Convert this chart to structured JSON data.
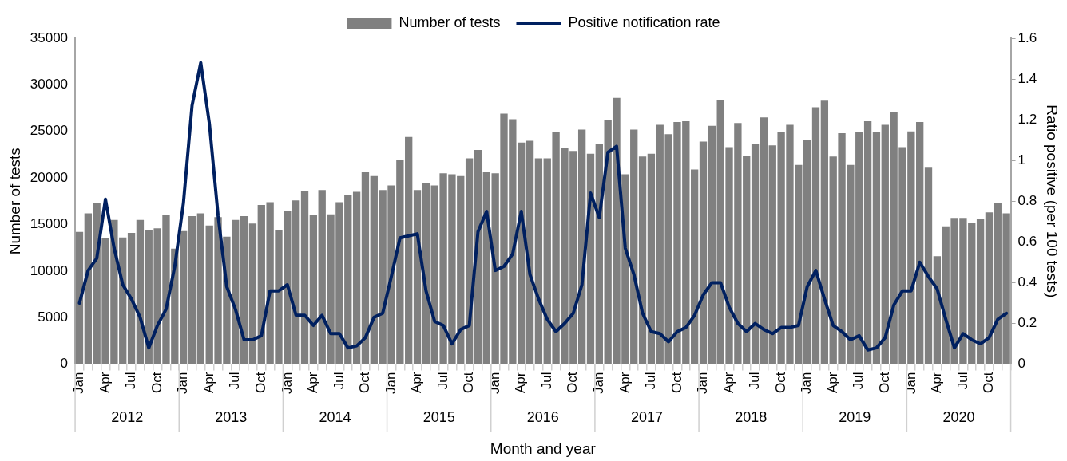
{
  "chart_data": {
    "type": "bar",
    "xlabel": "Month and year",
    "ylabel": "Number of tests",
    "y2label": "Ratio positive (per 100 tests)",
    "categories": [
      "Jan",
      null,
      null,
      "Apr",
      null,
      null,
      "Jul",
      null,
      null,
      "Oct",
      null,
      null,
      "Jan",
      null,
      null,
      "Apr",
      null,
      null,
      "Jul",
      null,
      null,
      "Oct",
      null,
      null,
      "Jan",
      null,
      null,
      "Apr",
      null,
      null,
      "Jul",
      null,
      null,
      "Oct",
      null,
      null,
      "Jan",
      null,
      null,
      "Apr",
      null,
      null,
      "Jul",
      null,
      null,
      "Oct",
      null,
      null,
      "Jan",
      null,
      null,
      "Apr",
      null,
      null,
      "Jul",
      null,
      null,
      "Oct",
      null,
      null,
      "Jan",
      null,
      null,
      "Apr",
      null,
      null,
      "Jul",
      null,
      null,
      "Oct",
      null,
      null,
      "Jan",
      null,
      null,
      "Apr",
      null,
      null,
      "Jul",
      null,
      null,
      "Oct",
      null,
      null,
      "Jan",
      null,
      null,
      "Apr",
      null,
      null,
      "Jul",
      null,
      null,
      "Oct",
      null,
      null,
      "Jan",
      null,
      null,
      "Apr",
      null,
      null,
      "Jul",
      null,
      null,
      "Oct",
      null,
      null
    ],
    "annotations": [
      "2012",
      "2013",
      "2014",
      "2015",
      "2016",
      "2017",
      "2018",
      "2019",
      "2020"
    ],
    "series": [
      {
        "name": "Number of tests",
        "color": "#808080",
        "values": [
          14200,
          16200,
          17300,
          13500,
          15500,
          13600,
          14100,
          15500,
          14400,
          14600,
          16000,
          12400,
          14300,
          15900,
          16200,
          14900,
          15800,
          13700,
          15500,
          15900,
          15100,
          17100,
          17400,
          14400,
          16500,
          17600,
          18600,
          16000,
          18700,
          16100,
          17400,
          18200,
          18500,
          20600,
          20200,
          18700,
          19200,
          21900,
          24400,
          18700,
          19500,
          19200,
          20500,
          20400,
          20200,
          22100,
          23000,
          20600,
          20500,
          26900,
          26300,
          23800,
          24000,
          22100,
          22100,
          24900,
          23200,
          22900,
          25200,
          22600,
          23600,
          26200,
          28600,
          20400,
          25200,
          22300,
          22600,
          25700,
          24700,
          26000,
          26100,
          20900,
          23900,
          25600,
          28400,
          23300,
          25900,
          22400,
          23600,
          26500,
          23500,
          24900,
          25700,
          21400,
          24100,
          27600,
          28300,
          22300,
          24800,
          21400,
          24900,
          26100,
          24900,
          25700,
          27100,
          23300,
          25000,
          26000,
          21100,
          11600,
          14800,
          15700,
          15700,
          15200,
          15600,
          16300,
          17300,
          16200
        ]
      },
      {
        "name": "Positive notification rate",
        "type": "line",
        "axis": "y2",
        "color": "#002060",
        "values": [
          0.3,
          0.46,
          0.52,
          0.81,
          0.57,
          0.39,
          0.32,
          0.23,
          0.08,
          0.19,
          0.27,
          0.48,
          0.79,
          1.27,
          1.48,
          1.18,
          0.73,
          0.38,
          0.27,
          0.12,
          0.12,
          0.14,
          0.36,
          0.36,
          0.39,
          0.24,
          0.24,
          0.19,
          0.24,
          0.15,
          0.15,
          0.08,
          0.09,
          0.13,
          0.23,
          0.25,
          0.43,
          0.62,
          0.63,
          0.64,
          0.36,
          0.21,
          0.19,
          0.1,
          0.17,
          0.19,
          0.65,
          0.75,
          0.46,
          0.48,
          0.54,
          0.75,
          0.44,
          0.32,
          0.22,
          0.16,
          0.2,
          0.25,
          0.39,
          0.84,
          0.72,
          1.04,
          1.07,
          0.57,
          0.44,
          0.25,
          0.16,
          0.15,
          0.11,
          0.16,
          0.18,
          0.24,
          0.34,
          0.4,
          0.4,
          0.28,
          0.2,
          0.16,
          0.2,
          0.17,
          0.15,
          0.18,
          0.18,
          0.19,
          0.38,
          0.46,
          0.32,
          0.19,
          0.16,
          0.12,
          0.14,
          0.07,
          0.08,
          0.13,
          0.29,
          0.36,
          0.36,
          0.5,
          0.43,
          0.37,
          0.22,
          0.08,
          0.15,
          0.12,
          0.1,
          0.13,
          0.22,
          0.25
        ]
      }
    ],
    "ylim": [
      0,
      35000
    ],
    "yticks": [
      0,
      5000,
      10000,
      15000,
      20000,
      25000,
      30000,
      35000
    ],
    "y2lim": [
      0,
      1.6
    ],
    "y2ticks": [
      0,
      0.2,
      0.4,
      0.6,
      0.8,
      1,
      1.2,
      1.4,
      1.6
    ],
    "grid": false,
    "legend": "top",
    "marker": "none"
  }
}
